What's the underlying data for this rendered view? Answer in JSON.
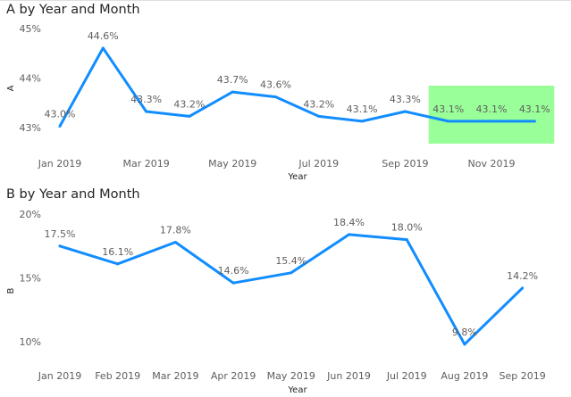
{
  "chart_data": [
    {
      "type": "line",
      "title": "A by Year and Month",
      "xlabel": "Year",
      "ylabel": "A",
      "x": [
        "Jan 2019",
        "Feb 2019",
        "Mar 2019",
        "Apr 2019",
        "May 2019",
        "Jun 2019",
        "Jul 2019",
        "Aug 2019",
        "Sep 2019",
        "Oct 2019",
        "Nov 2019",
        "Dec 2019"
      ],
      "x_tick_labels": [
        "Jan 2019",
        "Mar 2019",
        "May 2019",
        "Jul 2019",
        "Sep 2019",
        "Nov 2019"
      ],
      "values": [
        43.0,
        44.6,
        43.3,
        43.2,
        43.7,
        43.6,
        43.2,
        43.1,
        43.3,
        43.1,
        43.1,
        43.1
      ],
      "data_labels": [
        "43.0%",
        "44.6%",
        "43.3%",
        "43.2%",
        "43.7%",
        "43.6%",
        "43.2%",
        "43.1%",
        "43.3%",
        "43.1%",
        "43.1%",
        "43.1%"
      ],
      "y_ticks": [
        "45%",
        "44%",
        "43%"
      ],
      "ylim": [
        42.97,
        45.0
      ],
      "highlight": {
        "from": "Oct 2019",
        "to": "Dec 2019",
        "color": "#99ff99"
      },
      "line_color": "#118dff",
      "grid": false
    },
    {
      "type": "line",
      "title": "B by Year and Month",
      "xlabel": "Year",
      "ylabel": "B",
      "x": [
        "Jan 2019",
        "Feb 2019",
        "Mar 2019",
        "Apr 2019",
        "May 2019",
        "Jun 2019",
        "Jul 2019",
        "Aug 2019",
        "Sep 2019"
      ],
      "x_tick_labels": [
        "Jan 2019",
        "Feb 2019",
        "Mar 2019",
        "Apr 2019",
        "May 2019",
        "Jun 2019",
        "Jul 2019",
        "Aug 2019",
        "Sep 2019"
      ],
      "values": [
        17.5,
        16.1,
        17.8,
        14.6,
        15.4,
        18.4,
        18.0,
        9.8,
        14.2
      ],
      "data_labels": [
        "17.5%",
        "16.1%",
        "17.8%",
        "14.6%",
        "15.4%",
        "18.4%",
        "18.0%",
        "9.8%",
        "14.2%"
      ],
      "y_ticks": [
        "20%",
        "15%",
        "10%"
      ],
      "ylim": [
        10,
        20
      ],
      "line_color": "#118dff",
      "grid": false
    }
  ]
}
